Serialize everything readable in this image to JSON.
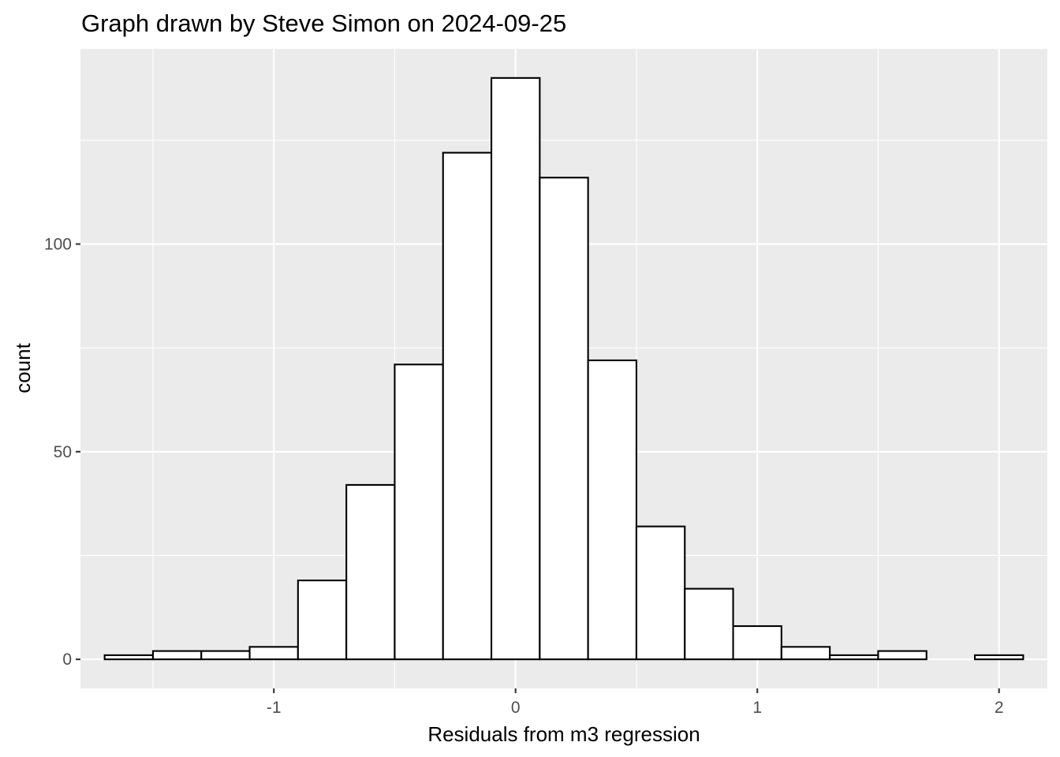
{
  "chart_data": {
    "type": "bar",
    "title": "Graph drawn by Steve Simon on 2024-09-25",
    "xlabel": "Residuals from m3 regression",
    "ylabel": "count",
    "xlim": [
      -1.8,
      2.2
    ],
    "ylim": [
      -7,
      147
    ],
    "x_ticks": [
      {
        "value": -1,
        "label": "-1"
      },
      {
        "value": 0,
        "label": "0"
      },
      {
        "value": 1,
        "label": "1"
      },
      {
        "value": 2,
        "label": "2"
      }
    ],
    "y_ticks": [
      {
        "value": 0,
        "label": "0"
      },
      {
        "value": 50,
        "label": "50"
      },
      {
        "value": 100,
        "label": "100"
      }
    ],
    "bin_width": 0.2,
    "bins": [
      {
        "x0": -1.7,
        "x1": -1.5,
        "count": 1
      },
      {
        "x0": -1.5,
        "x1": -1.3,
        "count": 2
      },
      {
        "x0": -1.3,
        "x1": -1.1,
        "count": 2
      },
      {
        "x0": -1.1,
        "x1": -0.9,
        "count": 3
      },
      {
        "x0": -0.9,
        "x1": -0.7,
        "count": 19
      },
      {
        "x0": -0.7,
        "x1": -0.5,
        "count": 42
      },
      {
        "x0": -0.5,
        "x1": -0.3,
        "count": 71
      },
      {
        "x0": -0.3,
        "x1": -0.1,
        "count": 122
      },
      {
        "x0": -0.1,
        "x1": 0.1,
        "count": 140
      },
      {
        "x0": 0.1,
        "x1": 0.3,
        "count": 116
      },
      {
        "x0": 0.3,
        "x1": 0.5,
        "count": 72
      },
      {
        "x0": 0.5,
        "x1": 0.7,
        "count": 32
      },
      {
        "x0": 0.7,
        "x1": 0.9,
        "count": 17
      },
      {
        "x0": 0.9,
        "x1": 1.1,
        "count": 8
      },
      {
        "x0": 1.1,
        "x1": 1.3,
        "count": 3
      },
      {
        "x0": 1.3,
        "x1": 1.5,
        "count": 1
      },
      {
        "x0": 1.5,
        "x1": 1.7,
        "count": 2
      },
      {
        "x0": 1.7,
        "x1": 1.9,
        "count": 0
      },
      {
        "x0": 1.9,
        "x1": 2.1,
        "count": 1
      }
    ],
    "grid": true,
    "colors": {
      "panel": "#ebebeb",
      "grid": "#ffffff",
      "bar_fill": "#ffffff",
      "bar_outline": "#000000",
      "tick_text": "#4d4d4d"
    }
  }
}
